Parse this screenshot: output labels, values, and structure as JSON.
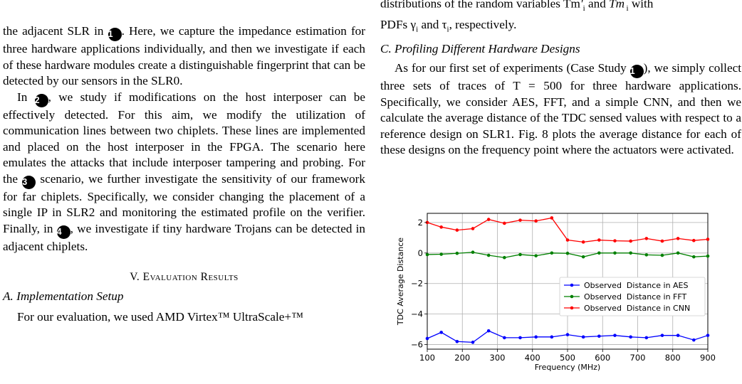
{
  "right_top": {
    "line1": "distributions of the random variables Tm",
    "line2": "PDFs γ",
    "line2_b": "and τ",
    "line2_c": ", respectively."
  },
  "left_p1": {
    "a": "the adjacent SLR in ",
    "b": ". Here, we capture the impedance estimation for three hardware applications individually, and then we investigate if each of these hardware modules create a distinguishable fingerprint that can be detected by our sensors in the SLR0."
  },
  "left_p2": {
    "a": "In ",
    "b": ", we study if modifications on the host interposer can be effectively detected. For this aim, we modify the utilization of communication lines between two chiplets. These lines are implemented and placed on the host interposer in the FPGA. The scenario here emulates the attacks that include interposer tampering and probing. For the ",
    "c": " scenario, we further investigate the sensitivity of our framework for far chiplets. Specifically, we consider changing the placement of a single IP in SLR2 and monitoring the estimated profile on the verifier. Finally, in ",
    "d": ", we investigate if tiny hardware Trojans can be detected in adjacent chiplets."
  },
  "markers": {
    "m1": "1",
    "m2": "2",
    "m3": "3",
    "m4": "4"
  },
  "section_title": "V. Evaluation Results",
  "sub_a": "A. Implementation Setup",
  "left_p3": "For our evaluation, we used AMD Virtex™ UltraScale+™",
  "sub_c": "C. Profiling Different Hardware Designs",
  "right_p1": {
    "a": "As for our first set of experiments (Case Study ",
    "b": "), we simply collect three sets of traces of T = 500 for three hardware applications. Specifically, we consider AES, FFT, and a simple CNN, and then we calculate the average distance of the TDC sensed values with respect to a reference design on SLR1. Fig. 8 plots the average distance for each of these designs on the frequency point where the actuators were activated."
  },
  "chart_data": {
    "type": "line",
    "xlabel": "Frequency (MHz)",
    "ylabel": "TDC Average Distance",
    "xlim": [
      100,
      900
    ],
    "ylim": [
      -6.3,
      2.6
    ],
    "xticks": [
      100,
      200,
      300,
      400,
      500,
      600,
      700,
      800,
      900
    ],
    "yticks": [
      -6,
      -4,
      -2,
      0,
      2
    ],
    "grid": true,
    "legend_position": "center-right",
    "x": [
      100,
      140,
      185,
      230,
      275,
      320,
      365,
      410,
      455,
      500,
      545,
      590,
      635,
      680,
      725,
      770,
      815,
      860,
      900
    ],
    "series": [
      {
        "name": "Observed  Distance in AES",
        "color": "#0000ff",
        "values": [
          -5.6,
          -5.2,
          -5.8,
          -5.85,
          -5.1,
          -5.55,
          -5.55,
          -5.5,
          -5.5,
          -5.35,
          -5.5,
          -5.45,
          -5.4,
          -5.5,
          -5.55,
          -5.4,
          -5.4,
          -5.7,
          -5.4
        ]
      },
      {
        "name": "Observed  Distance in FFT",
        "color": "#008000",
        "values": [
          -0.1,
          -0.08,
          -0.02,
          0.05,
          -0.15,
          -0.3,
          -0.1,
          -0.18,
          0.0,
          -0.02,
          -0.25,
          0.0,
          0.0,
          0.0,
          -0.12,
          -0.15,
          0.0,
          -0.25,
          -0.2
        ]
      },
      {
        "name": "Observed  Distance in CNN",
        "color": "#ff0000",
        "values": [
          2.0,
          1.7,
          1.5,
          1.6,
          2.2,
          1.95,
          2.15,
          2.1,
          2.3,
          0.85,
          0.72,
          0.85,
          0.8,
          0.78,
          0.95,
          0.78,
          0.95,
          0.82,
          0.9
        ]
      }
    ]
  }
}
